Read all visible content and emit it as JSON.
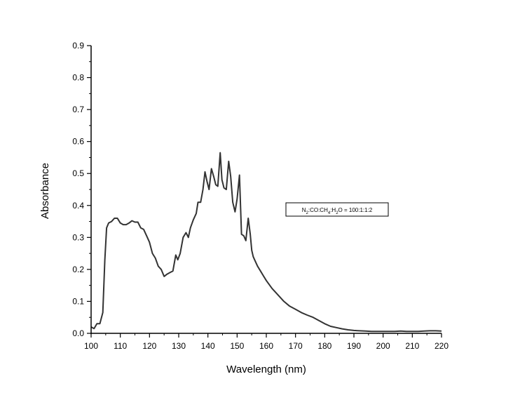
{
  "chart_data": {
    "type": "line",
    "title": "",
    "xlabel": "Wavelength (nm)",
    "ylabel": "Absorbance",
    "xlim": [
      100,
      220
    ],
    "ylim": [
      0.0,
      0.9
    ],
    "x_ticks": [
      "100",
      "110",
      "120",
      "130",
      "140",
      "150",
      "160",
      "170",
      "180",
      "190",
      "200",
      "210",
      "220"
    ],
    "y_ticks": [
      "0.0",
      "0.1",
      "0.2",
      "0.3",
      "0.4",
      "0.5",
      "0.6",
      "0.7",
      "0.8",
      "0.9"
    ],
    "grid": false,
    "line_color": "#333333",
    "legend": {
      "placement": "right-middle",
      "parts": [
        {
          "t": "N",
          "sub": false
        },
        {
          "t": "2",
          "sub": true
        },
        {
          "t": ":CO:CH",
          "sub": false
        },
        {
          "t": "4",
          "sub": true
        },
        {
          "t": ":H",
          "sub": false
        },
        {
          "t": "2",
          "sub": true
        },
        {
          "t": "O  = 100:1:1:2",
          "sub": false
        }
      ]
    },
    "series": [
      {
        "x": [
          100,
          101,
          102,
          103,
          104,
          104.7,
          105.3,
          106,
          107,
          108,
          109,
          110,
          111,
          112,
          113,
          114,
          115,
          116,
          117,
          118,
          119,
          120,
          121,
          122,
          123,
          124,
          125,
          126,
          127,
          128,
          129,
          129.7,
          130.5,
          131.5,
          132.5,
          133.3,
          134,
          135,
          136,
          136.6,
          137.5,
          138.3,
          139,
          139.7,
          140.4,
          141.2,
          142,
          142.7,
          143.4,
          144.2,
          144.8,
          145.5,
          146.3,
          147.1,
          147.8,
          148.5,
          149.3,
          150,
          150.8,
          151.5,
          152.3,
          153,
          153.8,
          154.5,
          155,
          155.5,
          156,
          157,
          158,
          159,
          160,
          162,
          164,
          166,
          168,
          170,
          172,
          174,
          176,
          178,
          180,
          182,
          184,
          186,
          188,
          190,
          192,
          194,
          196,
          198,
          200,
          202,
          204,
          206,
          208,
          210,
          212,
          214,
          216,
          218,
          220
        ],
        "y": [
          0.02,
          0.015,
          0.03,
          0.03,
          0.065,
          0.23,
          0.33,
          0.345,
          0.35,
          0.36,
          0.36,
          0.345,
          0.34,
          0.34,
          0.345,
          0.352,
          0.348,
          0.348,
          0.33,
          0.325,
          0.305,
          0.285,
          0.25,
          0.235,
          0.21,
          0.2,
          0.178,
          0.185,
          0.19,
          0.195,
          0.245,
          0.23,
          0.25,
          0.3,
          0.315,
          0.3,
          0.33,
          0.355,
          0.375,
          0.41,
          0.41,
          0.45,
          0.505,
          0.475,
          0.45,
          0.515,
          0.49,
          0.465,
          0.46,
          0.565,
          0.48,
          0.455,
          0.45,
          0.538,
          0.49,
          0.41,
          0.38,
          0.42,
          0.495,
          0.31,
          0.305,
          0.29,
          0.36,
          0.31,
          0.26,
          0.24,
          0.23,
          0.21,
          0.195,
          0.18,
          0.165,
          0.14,
          0.12,
          0.1,
          0.085,
          0.075,
          0.065,
          0.057,
          0.05,
          0.04,
          0.03,
          0.022,
          0.018,
          0.014,
          0.011,
          0.009,
          0.008,
          0.007,
          0.006,
          0.006,
          0.006,
          0.006,
          0.006,
          0.007,
          0.006,
          0.006,
          0.006,
          0.007,
          0.008,
          0.008,
          0.007
        ]
      }
    ]
  }
}
